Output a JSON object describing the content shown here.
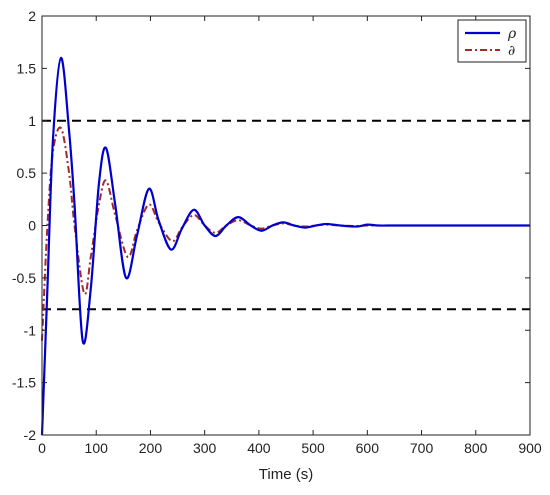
{
  "chart_data": {
    "type": "line",
    "title": "",
    "xlabel": "Time (s)",
    "ylabel": "",
    "xlim": [
      0,
      900
    ],
    "ylim": [
      -2,
      2
    ],
    "xticks": [
      0,
      100,
      200,
      300,
      400,
      500,
      600,
      700,
      800,
      900
    ],
    "yticks": [
      2,
      1.5,
      1,
      0.5,
      0,
      -0.5,
      -1,
      -1.5,
      -2
    ],
    "xtick_labels": [
      "0",
      "100",
      "200",
      "300",
      "400",
      "500",
      "600",
      "700",
      "800",
      "900"
    ],
    "ytick_labels": [
      "2",
      "1.5",
      "1",
      "0.5",
      "0",
      "-0.5",
      "-1",
      "-1.5",
      "-2"
    ],
    "grid": false,
    "legend_position": "top-right",
    "series": [
      {
        "name": "ρ",
        "color": "#0000cc",
        "style": "solid",
        "x": [
          0,
          10,
          20,
          35,
          50,
          60,
          75,
          90,
          105,
          118,
          135,
          155,
          175,
          197,
          215,
          238,
          258,
          280,
          300,
          320,
          340,
          362,
          385,
          405,
          425,
          445,
          465,
          485,
          505,
          525,
          550,
          580,
          600,
          620,
          650,
          700,
          750,
          800,
          850,
          900
        ],
        "y": [
          -2.0,
          -0.6,
          0.8,
          1.6,
          0.9,
          0.2,
          -1.1,
          -0.6,
          0.4,
          0.74,
          0.2,
          -0.5,
          -0.1,
          0.35,
          0.05,
          -0.23,
          -0.03,
          0.15,
          0.0,
          -0.1,
          0.0,
          0.08,
          0.0,
          -0.05,
          0.0,
          0.03,
          0.0,
          -0.02,
          0.0,
          0.015,
          0.0,
          -0.01,
          0.008,
          0.0,
          0.0,
          0.0,
          0.0,
          0.0,
          0.0,
          0.0
        ]
      },
      {
        "name": "∂",
        "color": "#a52a2a",
        "style": "dashdot",
        "x": [
          0,
          10,
          20,
          35,
          50,
          60,
          78,
          90,
          105,
          118,
          135,
          158,
          175,
          197,
          215,
          240,
          258,
          280,
          300,
          320,
          340,
          362,
          385,
          405,
          425,
          445,
          465,
          485,
          505,
          525,
          550,
          580,
          600,
          650,
          700,
          750,
          800,
          850,
          900
        ],
        "y": [
          -1.1,
          0.0,
          0.7,
          0.93,
          0.5,
          0.0,
          -0.65,
          -0.3,
          0.2,
          0.43,
          0.1,
          -0.3,
          -0.05,
          0.2,
          0.03,
          -0.15,
          -0.02,
          0.1,
          0.0,
          -0.07,
          0.0,
          0.05,
          0.0,
          -0.03,
          0.0,
          0.02,
          0.0,
          -0.01,
          0.0,
          0.008,
          0.0,
          -0.005,
          0.0,
          0.0,
          0.0,
          0.0,
          0.0,
          0.0,
          0.0
        ]
      }
    ],
    "reference_lines": [
      {
        "y": 1.0,
        "color": "#000000",
        "style": "dashed"
      },
      {
        "y": -0.8,
        "color": "#000000",
        "style": "dashed"
      }
    ]
  }
}
